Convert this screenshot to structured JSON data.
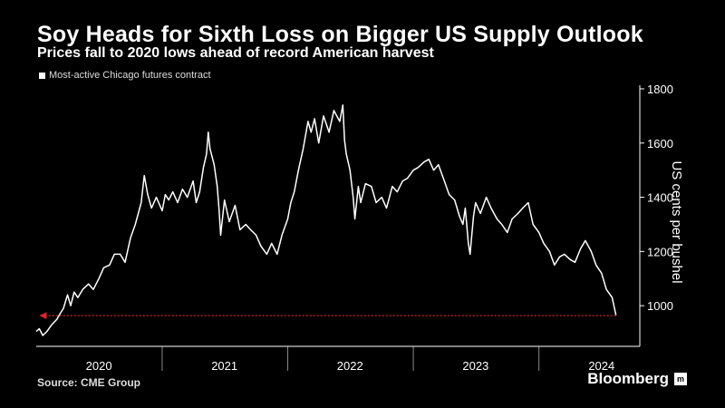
{
  "header": {
    "title": "Soy Heads for Sixth Loss on Bigger US Supply Outlook",
    "subtitle": "Prices fall to 2020 lows ahead of record American harvest"
  },
  "legend": {
    "label": "Most-active Chicago futures contract",
    "color": "#ffffff"
  },
  "footer": {
    "source": "Source: CME Group",
    "brand": "Bloomberg",
    "brand_mark": "m"
  },
  "colors": {
    "background": "#000000",
    "line": "#ffffff",
    "arrow": "#e0202a",
    "axis": "#ffffff"
  },
  "chart_data": {
    "type": "line",
    "ylabel": "US cents per bushel",
    "ylim": [
      850,
      1820
    ],
    "yticks": [
      1000,
      1200,
      1400,
      1600,
      1800
    ],
    "xlim": [
      "2020-01-01",
      "2024-08-18"
    ],
    "xticks": [
      {
        "label": "2020",
        "date": "2020-07-01"
      },
      {
        "label": "2021",
        "date": "2021-07-01"
      },
      {
        "label": "2022",
        "date": "2022-07-01"
      },
      {
        "label": "2023",
        "date": "2023-07-01"
      },
      {
        "label": "2024",
        "date": "2024-07-01"
      }
    ],
    "year_separators": [
      "2021-01-01",
      "2022-01-01",
      "2023-01-01",
      "2024-01-01"
    ],
    "grid": false,
    "axis_side": "right",
    "annotation": {
      "type": "arrow",
      "value": 965,
      "from": "2024-08-12",
      "to": "2020-01-10",
      "style": "dotted"
    },
    "series": [
      {
        "values": [
          [
            "2020-01-01",
            905
          ],
          [
            "2020-01-10",
            915
          ],
          [
            "2020-01-20",
            890
          ],
          [
            "2020-02-01",
            905
          ],
          [
            "2020-02-15",
            930
          ],
          [
            "2020-03-01",
            950
          ],
          [
            "2020-03-10",
            970
          ],
          [
            "2020-03-20",
            990
          ],
          [
            "2020-04-01",
            1040
          ],
          [
            "2020-04-10",
            1000
          ],
          [
            "2020-04-20",
            1050
          ],
          [
            "2020-05-01",
            1030
          ],
          [
            "2020-05-15",
            1060
          ],
          [
            "2020-06-01",
            1080
          ],
          [
            "2020-06-15",
            1060
          ],
          [
            "2020-07-01",
            1100
          ],
          [
            "2020-07-15",
            1140
          ],
          [
            "2020-08-01",
            1150
          ],
          [
            "2020-08-15",
            1190
          ],
          [
            "2020-09-01",
            1190
          ],
          [
            "2020-09-15",
            1160
          ],
          [
            "2020-10-01",
            1250
          ],
          [
            "2020-10-15",
            1300
          ],
          [
            "2020-11-01",
            1380
          ],
          [
            "2020-11-10",
            1480
          ],
          [
            "2020-11-20",
            1410
          ],
          [
            "2020-12-01",
            1360
          ],
          [
            "2020-12-15",
            1400
          ],
          [
            "2021-01-01",
            1350
          ],
          [
            "2021-01-10",
            1410
          ],
          [
            "2021-01-20",
            1390
          ],
          [
            "2021-02-01",
            1420
          ],
          [
            "2021-02-15",
            1380
          ],
          [
            "2021-03-01",
            1430
          ],
          [
            "2021-03-15",
            1400
          ],
          [
            "2021-04-01",
            1460
          ],
          [
            "2021-04-10",
            1380
          ],
          [
            "2021-04-20",
            1420
          ],
          [
            "2021-05-01",
            1510
          ],
          [
            "2021-05-10",
            1560
          ],
          [
            "2021-05-15",
            1640
          ],
          [
            "2021-05-20",
            1580
          ],
          [
            "2021-06-01",
            1520
          ],
          [
            "2021-06-10",
            1440
          ],
          [
            "2021-06-15",
            1360
          ],
          [
            "2021-06-20",
            1260
          ],
          [
            "2021-07-01",
            1390
          ],
          [
            "2021-07-15",
            1310
          ],
          [
            "2021-08-01",
            1370
          ],
          [
            "2021-08-15",
            1280
          ],
          [
            "2021-09-01",
            1300
          ],
          [
            "2021-09-15",
            1280
          ],
          [
            "2021-10-01",
            1260
          ],
          [
            "2021-10-15",
            1220
          ],
          [
            "2021-11-01",
            1190
          ],
          [
            "2021-11-15",
            1230
          ],
          [
            "2021-12-01",
            1190
          ],
          [
            "2021-12-15",
            1260
          ],
          [
            "2022-01-01",
            1320
          ],
          [
            "2022-01-10",
            1380
          ],
          [
            "2022-01-20",
            1420
          ],
          [
            "2022-02-01",
            1500
          ],
          [
            "2022-02-15",
            1580
          ],
          [
            "2022-03-01",
            1680
          ],
          [
            "2022-03-10",
            1640
          ],
          [
            "2022-03-20",
            1690
          ],
          [
            "2022-04-01",
            1600
          ],
          [
            "2022-04-15",
            1700
          ],
          [
            "2022-05-01",
            1640
          ],
          [
            "2022-05-15",
            1720
          ],
          [
            "2022-06-01",
            1680
          ],
          [
            "2022-06-10",
            1740
          ],
          [
            "2022-06-15",
            1610
          ],
          [
            "2022-06-20",
            1560
          ],
          [
            "2022-07-01",
            1500
          ],
          [
            "2022-07-10",
            1400
          ],
          [
            "2022-07-15",
            1320
          ],
          [
            "2022-07-25",
            1440
          ],
          [
            "2022-08-01",
            1380
          ],
          [
            "2022-08-15",
            1450
          ],
          [
            "2022-09-01",
            1440
          ],
          [
            "2022-09-15",
            1380
          ],
          [
            "2022-10-01",
            1400
          ],
          [
            "2022-10-15",
            1360
          ],
          [
            "2022-11-01",
            1440
          ],
          [
            "2022-11-15",
            1420
          ],
          [
            "2022-12-01",
            1460
          ],
          [
            "2022-12-15",
            1470
          ],
          [
            "2023-01-01",
            1500
          ],
          [
            "2023-01-15",
            1510
          ],
          [
            "2023-02-01",
            1530
          ],
          [
            "2023-02-15",
            1540
          ],
          [
            "2023-03-01",
            1500
          ],
          [
            "2023-03-15",
            1520
          ],
          [
            "2023-04-01",
            1460
          ],
          [
            "2023-04-15",
            1410
          ],
          [
            "2023-05-01",
            1390
          ],
          [
            "2023-05-15",
            1330
          ],
          [
            "2023-05-25",
            1300
          ],
          [
            "2023-06-01",
            1360
          ],
          [
            "2023-06-10",
            1230
          ],
          [
            "2023-06-15",
            1190
          ],
          [
            "2023-06-25",
            1330
          ],
          [
            "2023-07-01",
            1380
          ],
          [
            "2023-07-15",
            1340
          ],
          [
            "2023-08-01",
            1400
          ],
          [
            "2023-08-15",
            1360
          ],
          [
            "2023-09-01",
            1320
          ],
          [
            "2023-09-15",
            1300
          ],
          [
            "2023-10-01",
            1270
          ],
          [
            "2023-10-15",
            1320
          ],
          [
            "2023-11-01",
            1340
          ],
          [
            "2023-11-15",
            1360
          ],
          [
            "2023-12-01",
            1380
          ],
          [
            "2023-12-15",
            1300
          ],
          [
            "2024-01-01",
            1270
          ],
          [
            "2024-01-15",
            1230
          ],
          [
            "2024-02-01",
            1200
          ],
          [
            "2024-02-15",
            1150
          ],
          [
            "2024-03-01",
            1180
          ],
          [
            "2024-03-15",
            1190
          ],
          [
            "2024-04-01",
            1170
          ],
          [
            "2024-04-15",
            1160
          ],
          [
            "2024-05-01",
            1210
          ],
          [
            "2024-05-15",
            1240
          ],
          [
            "2024-06-01",
            1200
          ],
          [
            "2024-06-15",
            1150
          ],
          [
            "2024-07-01",
            1120
          ],
          [
            "2024-07-15",
            1060
          ],
          [
            "2024-08-01",
            1030
          ],
          [
            "2024-08-12",
            965
          ]
        ]
      }
    ]
  }
}
